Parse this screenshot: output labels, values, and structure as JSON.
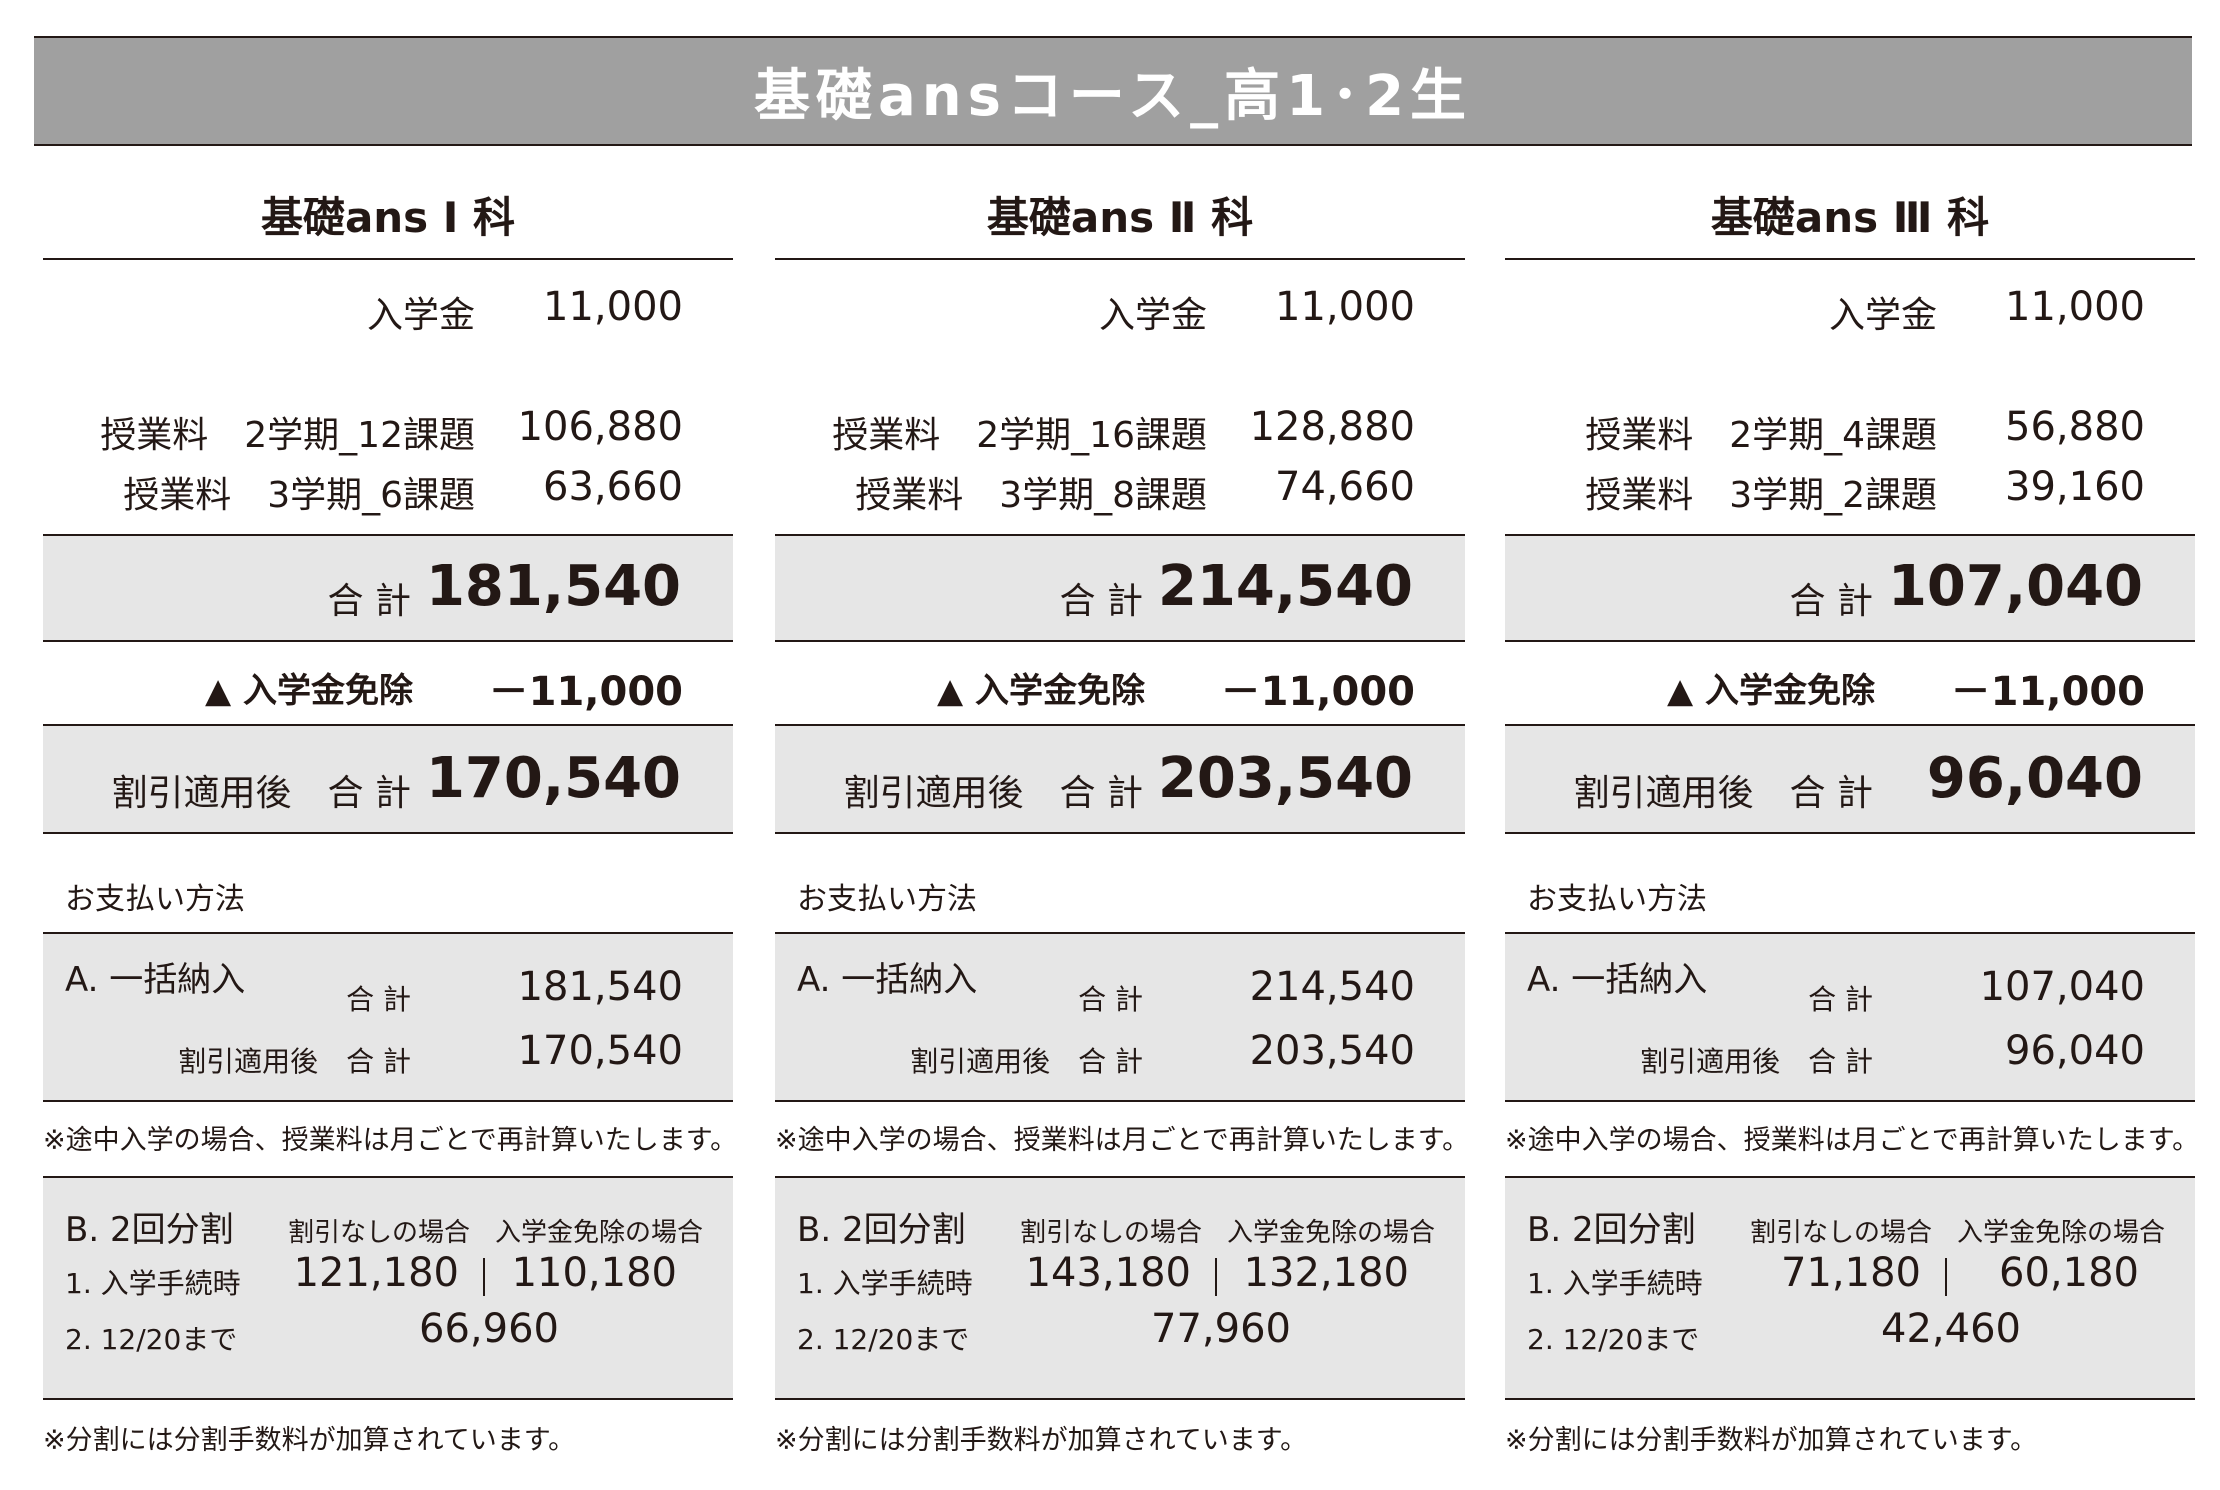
{
  "banner": {
    "title": "基礎ansコース_高1･2生"
  },
  "columns": [
    {
      "title": "基礎ans Ⅰ 科",
      "admission_label": "入学金",
      "admission_value": "11,000",
      "tuition1_label": "授業料　2学期_12課題",
      "tuition1_value": "106,880",
      "tuition2_label": "授業料　3学期_6課題",
      "tuition2_value": "63,660",
      "total_label": "合 計",
      "total_value": "181,540",
      "exempt_label": "▲ 入学金免除",
      "exempt_value": "－11,000",
      "discount_total_label": "割引適用後　合 計",
      "discount_total_value": "170,540",
      "payment_heading": "お支払い方法",
      "lump_title": "A. 一括納入",
      "lump_total_label": "合 計",
      "lump_total_value": "181,540",
      "lump_discount_label": "割引適用後　合 計",
      "lump_discount_value": "170,540",
      "midway_note": "※途中入学の場合、授業料は月ごとで再計算いたします。",
      "split_title": "B. 2回分割",
      "split_col1": "割引なしの場合",
      "split_col2": "入学金免除の場合",
      "split_row1_label": "1. 入学手続時",
      "split_row1_v1": "121,180",
      "split_row1_v2": "110,180",
      "split_row2_label": "2. 12/20まで",
      "split_row2_value": "66,960",
      "fee_note": "※分割には分割手数料が加算されています。"
    },
    {
      "title": "基礎ans Ⅱ 科",
      "admission_label": "入学金",
      "admission_value": "11,000",
      "tuition1_label": "授業料　2学期_16課題",
      "tuition1_value": "128,880",
      "tuition2_label": "授業料　3学期_8課題",
      "tuition2_value": "74,660",
      "total_label": "合 計",
      "total_value": "214,540",
      "exempt_label": "▲ 入学金免除",
      "exempt_value": "－11,000",
      "discount_total_label": "割引適用後　合 計",
      "discount_total_value": "203,540",
      "payment_heading": "お支払い方法",
      "lump_title": "A. 一括納入",
      "lump_total_label": "合 計",
      "lump_total_value": "214,540",
      "lump_discount_label": "割引適用後　合 計",
      "lump_discount_value": "203,540",
      "midway_note": "※途中入学の場合、授業料は月ごとで再計算いたします。",
      "split_title": "B. 2回分割",
      "split_col1": "割引なしの場合",
      "split_col2": "入学金免除の場合",
      "split_row1_label": "1. 入学手続時",
      "split_row1_v1": "143,180",
      "split_row1_v2": "132,180",
      "split_row2_label": "2. 12/20まで",
      "split_row2_value": "77,960",
      "fee_note": "※分割には分割手数料が加算されています。"
    },
    {
      "title": "基礎ans Ⅲ 科",
      "admission_label": "入学金",
      "admission_value": "11,000",
      "tuition1_label": "授業料　2学期_4課題",
      "tuition1_value": "56,880",
      "tuition2_label": "授業料　3学期_2課題",
      "tuition2_value": "39,160",
      "total_label": "合 計",
      "total_value": "107,040",
      "exempt_label": "▲ 入学金免除",
      "exempt_value": "－11,000",
      "discount_total_label": "割引適用後　合 計",
      "discount_total_value": "96,040",
      "payment_heading": "お支払い方法",
      "lump_title": "A. 一括納入",
      "lump_total_label": "合 計",
      "lump_total_value": "107,040",
      "lump_discount_label": "割引適用後　合 計",
      "lump_discount_value": "96,040",
      "midway_note": "※途中入学の場合、授業料は月ごとで再計算いたします。",
      "split_title": "B. 2回分割",
      "split_col1": "割引なしの場合",
      "split_col2": "入学金免除の場合",
      "split_row1_label": "1. 入学手続時",
      "split_row1_v1": "71,180",
      "split_row1_v2": "60,180",
      "split_row2_label": "2. 12/20まで",
      "split_row2_value": "42,460",
      "fee_note": "※分割には分割手数料が加算されています。"
    }
  ]
}
